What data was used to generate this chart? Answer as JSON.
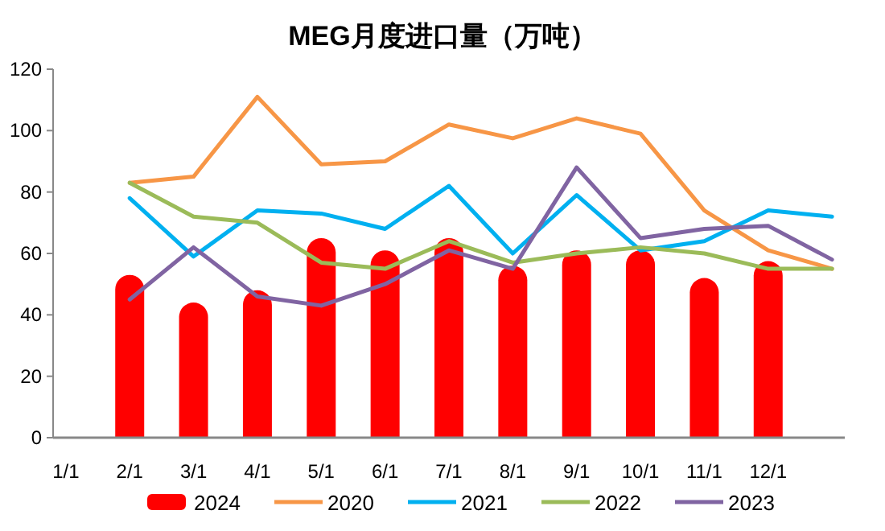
{
  "chart_data": {
    "type": "bar",
    "title": "MEG月度进口量（万吨）",
    "categories": [
      "1/1",
      "2/1",
      "3/1",
      "4/1",
      "5/1",
      "6/1",
      "7/1",
      "8/1",
      "9/1",
      "10/1",
      "11/1",
      "12/1",
      null
    ],
    "ylim": [
      0,
      120
    ],
    "yticks": [
      0,
      20,
      40,
      60,
      80,
      100,
      120
    ],
    "grid": false,
    "legend": "bottom",
    "series": [
      {
        "name": "2024",
        "color": "#ff0000",
        "values": [
          null,
          53,
          44,
          48,
          65,
          61,
          65,
          56,
          61,
          61,
          52,
          57.5,
          null
        ]
      },
      {
        "name": "2020",
        "type": "line",
        "color": "#f79646",
        "values": [
          null,
          83,
          85,
          111,
          89,
          90,
          102,
          97.5,
          104,
          99,
          74,
          61,
          55
        ]
      },
      {
        "name": "2021",
        "type": "line",
        "color": "#00b0f0",
        "values": [
          null,
          78,
          59,
          74,
          73,
          68,
          82,
          60,
          79,
          61,
          64,
          74,
          72
        ]
      },
      {
        "name": "2022",
        "type": "line",
        "color": "#9bbb59",
        "values": [
          null,
          83,
          72,
          70,
          57,
          55,
          64,
          57,
          60,
          62,
          60,
          55,
          55
        ]
      },
      {
        "name": "2023",
        "type": "line",
        "color": "#8064a2",
        "values": [
          null,
          45,
          62,
          46,
          43,
          50,
          61,
          55,
          88,
          65,
          68,
          69,
          58
        ]
      }
    ]
  }
}
